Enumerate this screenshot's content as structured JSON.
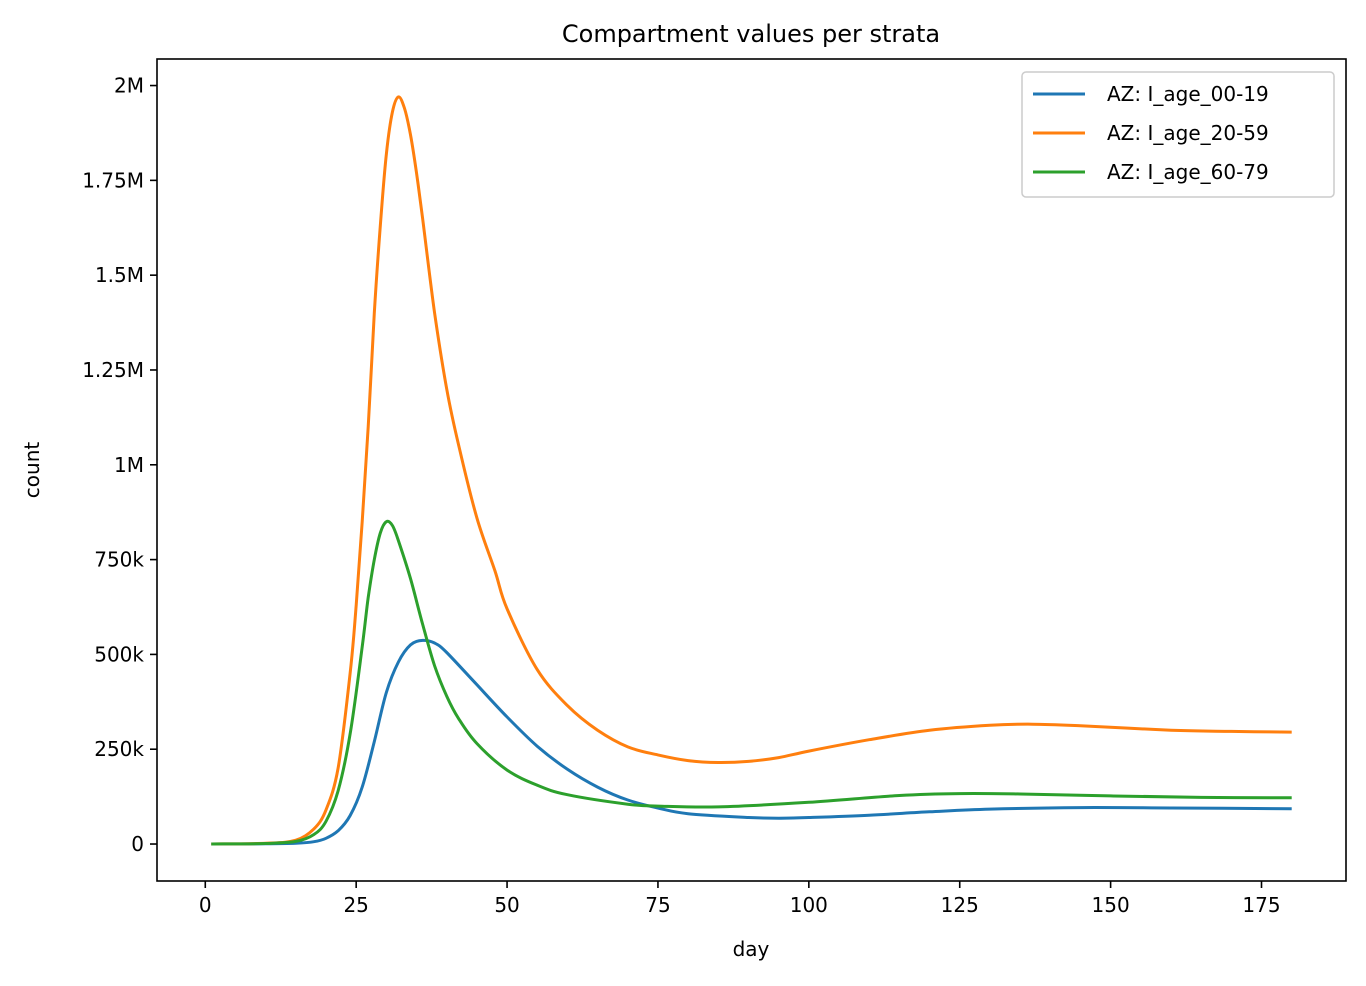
{
  "chart_data": {
    "type": "line",
    "title": "Compartment values per strata",
    "xlabel": "day",
    "ylabel": "count",
    "xlim": [
      -8,
      189
    ],
    "ylim": [
      -97500,
      2070000
    ],
    "xticks": [
      0,
      25,
      50,
      75,
      100,
      125,
      150,
      175
    ],
    "xtick_labels": [
      "0",
      "25",
      "50",
      "75",
      "100",
      "125",
      "150",
      "175"
    ],
    "yticks": [
      0,
      250000,
      500000,
      750000,
      1000000,
      1250000,
      1500000,
      1750000,
      2000000
    ],
    "ytick_labels": [
      "0",
      "250k",
      "500k",
      "750k",
      "1M",
      "1.25M",
      "1.5M",
      "1.75M",
      "2M"
    ],
    "grid": false,
    "legend_position": "top-right",
    "series": [
      {
        "name": "AZ: I_age_00-19",
        "color": "#1f77b4",
        "x": [
          1,
          10,
          15,
          18,
          20,
          22,
          24,
          26,
          28,
          30,
          32,
          34,
          36,
          38,
          40,
          45,
          50,
          55,
          60,
          65,
          70,
          75,
          80,
          90,
          95,
          100,
          110,
          120,
          130,
          145,
          160,
          180
        ],
        "y": [
          0,
          500,
          2000,
          6000,
          15000,
          35000,
          75000,
          150000,
          270000,
          400000,
          480000,
          525000,
          537000,
          530000,
          505000,
          420000,
          335000,
          258000,
          197000,
          150000,
          116000,
          95000,
          80000,
          70000,
          68000,
          70000,
          76000,
          85000,
          92000,
          96000,
          95000,
          93000
        ]
      },
      {
        "name": "AZ: I_age_20-59",
        "color": "#ff7f0e",
        "x": [
          1,
          10,
          15,
          18,
          20,
          22,
          24,
          25,
          26,
          27,
          28,
          29,
          30,
          31,
          32,
          33,
          34,
          35,
          36,
          38,
          40,
          42,
          45,
          48,
          50,
          55,
          60,
          65,
          70,
          75,
          80,
          85,
          90,
          95,
          100,
          110,
          120,
          130,
          137,
          145,
          160,
          170,
          180
        ],
        "y": [
          0,
          2000,
          10000,
          40000,
          90000,
          200000,
          450000,
          630000,
          850000,
          1100000,
          1400000,
          1630000,
          1820000,
          1930000,
          1970000,
          1940000,
          1870000,
          1770000,
          1650000,
          1400000,
          1200000,
          1050000,
          860000,
          720000,
          620000,
          460000,
          365000,
          300000,
          256000,
          235000,
          220000,
          215000,
          218000,
          228000,
          245000,
          275000,
          300000,
          313000,
          316000,
          312000,
          300000,
          297000,
          295000
        ]
      },
      {
        "name": "AZ: I_age_60-79",
        "color": "#2ca02c",
        "x": [
          1,
          10,
          15,
          18,
          20,
          22,
          24,
          26,
          27,
          28,
          29,
          30,
          31,
          32,
          34,
          36,
          38,
          40,
          42,
          45,
          50,
          55,
          60,
          70,
          75,
          85,
          100,
          115,
          125,
          135,
          150,
          165,
          180
        ],
        "y": [
          0,
          1500,
          7000,
          25000,
          60000,
          140000,
          290000,
          520000,
          650000,
          750000,
          820000,
          850000,
          840000,
          800000,
          700000,
          580000,
          470000,
          390000,
          330000,
          265000,
          195000,
          155000,
          130000,
          105000,
          100000,
          98000,
          110000,
          128000,
          133000,
          132000,
          127000,
          123000,
          122000
        ]
      }
    ]
  }
}
